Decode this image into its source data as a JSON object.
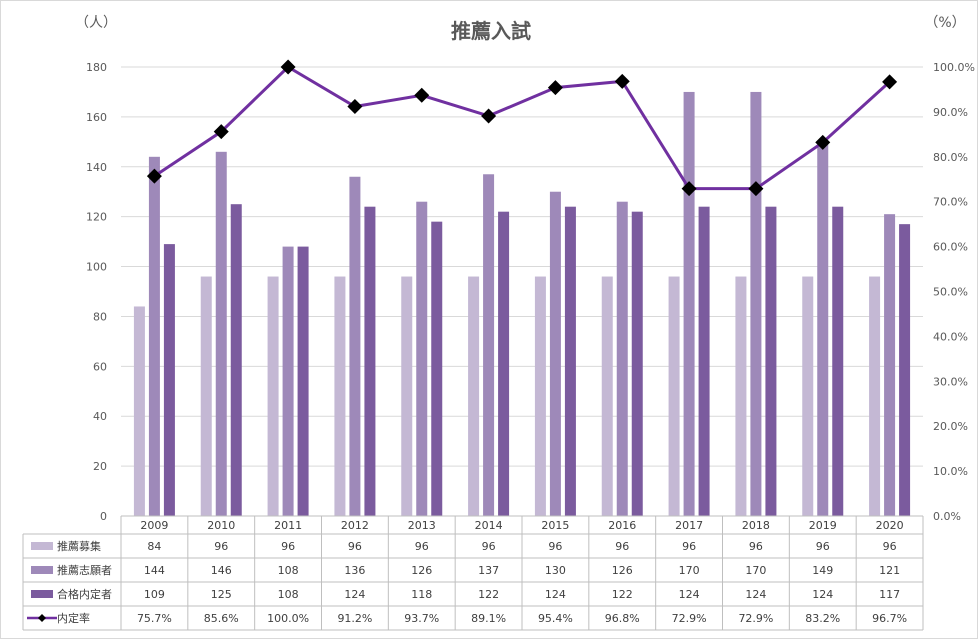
{
  "chart_data": {
    "type": "bar",
    "title": "推薦入試",
    "y_left_unit": "（人）",
    "y_right_unit": "（%）",
    "categories": [
      "2009",
      "2010",
      "2011",
      "2012",
      "2013",
      "2014",
      "2015",
      "2016",
      "2017",
      "2018",
      "2019",
      "2020"
    ],
    "series": [
      {
        "name": "推薦募集",
        "type": "bar",
        "axis": "left",
        "color": "#c4b8d4",
        "values": [
          84,
          96,
          96,
          96,
          96,
          96,
          96,
          96,
          96,
          96,
          96,
          96
        ]
      },
      {
        "name": "推薦志願者",
        "type": "bar",
        "axis": "left",
        "color": "#9e89b9",
        "values": [
          144,
          146,
          108,
          136,
          126,
          137,
          130,
          126,
          170,
          170,
          149,
          121
        ]
      },
      {
        "name": "合格内定者",
        "type": "bar",
        "axis": "left",
        "color": "#7b5b9e",
        "values": [
          109,
          125,
          108,
          124,
          118,
          122,
          124,
          122,
          124,
          124,
          124,
          117
        ]
      },
      {
        "name": "内定率",
        "type": "line",
        "axis": "right",
        "color": "#7030a0",
        "marker": "diamond",
        "marker_color": "#000000",
        "values": [
          75.7,
          85.6,
          100.0,
          91.2,
          93.7,
          89.1,
          95.4,
          96.8,
          72.9,
          72.9,
          83.2,
          96.7
        ],
        "labels": [
          "75.7%",
          "85.6%",
          "100.0%",
          "91.2%",
          "93.7%",
          "89.1%",
          "95.4%",
          "96.8%",
          "72.9%",
          "72.9%",
          "83.2%",
          "96.7%"
        ]
      }
    ],
    "y_left": {
      "min": 0,
      "max": 180,
      "step": 20,
      "ticks": [
        "0",
        "20",
        "40",
        "60",
        "80",
        "100",
        "120",
        "140",
        "160",
        "180"
      ]
    },
    "y_right": {
      "min": 0,
      "max": 100,
      "step": 10,
      "ticks": [
        "0.0%",
        "10.0%",
        "20.0%",
        "30.0%",
        "40.0%",
        "50.0%",
        "60.0%",
        "70.0%",
        "80.0%",
        "90.0%",
        "100.0%"
      ]
    },
    "grid": true,
    "legend": "data-table"
  }
}
